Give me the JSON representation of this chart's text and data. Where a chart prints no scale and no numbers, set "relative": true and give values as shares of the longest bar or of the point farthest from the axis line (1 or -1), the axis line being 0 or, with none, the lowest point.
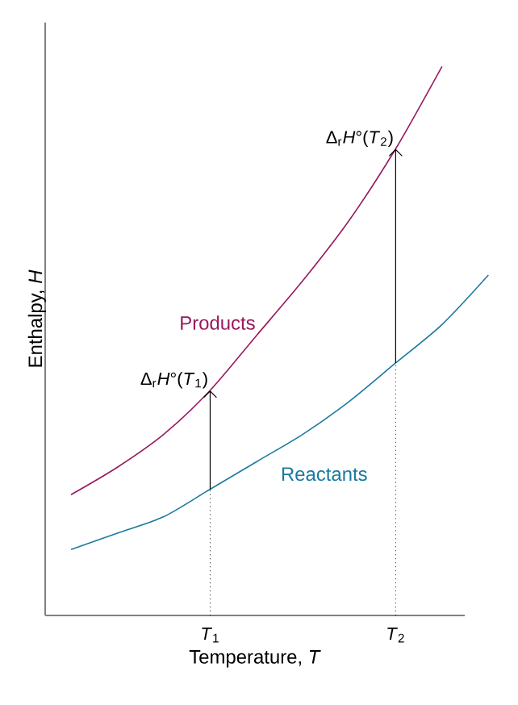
{
  "chart_data": {
    "type": "line",
    "relative": true,
    "xlabel": "Temperature, *T*",
    "ylabel": "Enthalpy, *H*",
    "categories": [
      null,
      null,
      null,
      "*T*$_{1}$",
      null,
      null,
      null,
      "*T*$_{2}$",
      null,
      null
    ],
    "series": [
      {
        "name": "Products",
        "color": "#99195e",
        "values": [
          0.22,
          0.27,
          0.33,
          0.41,
          0.51,
          0.61,
          0.72,
          0.85,
          1,
          null
        ]
      },
      {
        "name": "Reactants",
        "color": "#1a7a9e",
        "values": [
          0.12,
          0.15,
          0.18,
          0.23,
          0.28,
          0.33,
          0.39,
          0.46,
          0.53,
          0.62
        ]
      }
    ],
    "annotations": [
      {
        "text": "Δ$_{r}$*H*°(*T*$_{1}$)",
        "x": "*T*$_{1}$",
        "y": 0.41
      },
      {
        "text": "Δ$_{r}$*H*°(*T*$_{2}$)",
        "x": "*T*$_{2}$",
        "y": 0.85
      }
    ],
    "ref_lines": [
      {
        "axis": "x",
        "value": "*T*$_{1}$",
        "line_style": "dotted"
      },
      {
        "axis": "x",
        "value": "*T*$_{2}$",
        "line_style": "dotted"
      }
    ]
  }
}
